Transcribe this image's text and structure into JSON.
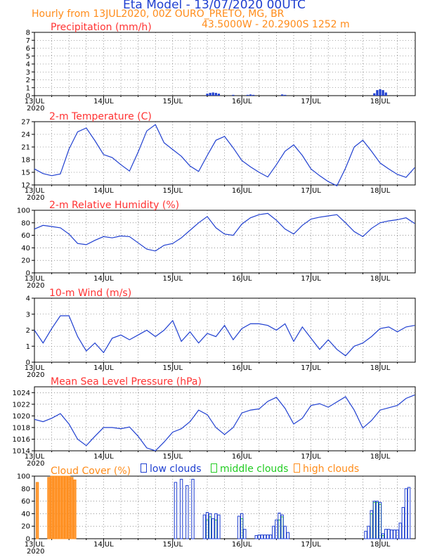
{
  "header": {
    "title": "Eta Model - 13/07/2020 00UTC",
    "subtitle_left": "Hourly from 13JUL2020, 00Z  OURO_PRETO, MG, BR",
    "subtitle_right": "43.5000W - 20.2900S   1252  m"
  },
  "colors": {
    "title": "#1f3fd0",
    "orange": "#ff8c1a",
    "panel_label": "#ff3333",
    "line": "#1f3fd0",
    "axis": "#000000",
    "low": "#1f3fd0",
    "mid": "#22cc22",
    "high": "#ff8c1a",
    "grid": "#555555"
  },
  "x_axis": {
    "start": "2020-07-13T00Z",
    "end": "2020-07-18T12Z",
    "tick_labels": [
      "13JUL",
      "14JUL",
      "15JUL",
      "16JUL",
      "17JUL",
      "18JUL"
    ],
    "year_label": "2020"
  },
  "chart_data": [
    {
      "type": "bar",
      "title": "Precipitation (mm/h)",
      "ylim": [
        0,
        8
      ],
      "yticks": [
        0,
        1,
        2,
        3,
        4,
        5,
        6,
        7,
        8
      ],
      "grid": true,
      "x": [
        "2020-07-15T12Z",
        "2020-07-15T13Z",
        "2020-07-15T14Z",
        "2020-07-15T15Z",
        "2020-07-15T16Z",
        "2020-07-15T21Z",
        "2020-07-16T02Z",
        "2020-07-16T03Z",
        "2020-07-16T04Z",
        "2020-07-16T14Z",
        "2020-07-16T15Z",
        "2020-07-17T22Z",
        "2020-07-17T23Z",
        "2020-07-18T00Z",
        "2020-07-18T01Z",
        "2020-07-18T02Z"
      ],
      "values": [
        0.25,
        0.35,
        0.4,
        0.35,
        0.25,
        0.1,
        0.1,
        0.15,
        0.1,
        0.15,
        0.1,
        0.3,
        0.7,
        0.8,
        0.7,
        0.4
      ]
    },
    {
      "type": "line",
      "title": "2-m Temperature (C)",
      "ylim": [
        12,
        27
      ],
      "yticks": [
        12,
        15,
        18,
        21,
        24,
        27
      ],
      "grid": true,
      "x": [
        "2020-07-13T00Z",
        "2020-07-13T03Z",
        "2020-07-13T06Z",
        "2020-07-13T09Z",
        "2020-07-13T12Z",
        "2020-07-13T15Z",
        "2020-07-13T18Z",
        "2020-07-13T21Z",
        "2020-07-14T00Z",
        "2020-07-14T03Z",
        "2020-07-14T06Z",
        "2020-07-14T09Z",
        "2020-07-14T12Z",
        "2020-07-14T15Z",
        "2020-07-14T18Z",
        "2020-07-14T21Z",
        "2020-07-15T00Z",
        "2020-07-15T03Z",
        "2020-07-15T06Z",
        "2020-07-15T09Z",
        "2020-07-15T12Z",
        "2020-07-15T15Z",
        "2020-07-15T18Z",
        "2020-07-15T21Z",
        "2020-07-16T00Z",
        "2020-07-16T03Z",
        "2020-07-16T06Z",
        "2020-07-16T09Z",
        "2020-07-16T12Z",
        "2020-07-16T15Z",
        "2020-07-16T18Z",
        "2020-07-16T21Z",
        "2020-07-17T00Z",
        "2020-07-17T03Z",
        "2020-07-17T06Z",
        "2020-07-17T09Z",
        "2020-07-17T12Z",
        "2020-07-17T15Z",
        "2020-07-17T18Z",
        "2020-07-17T21Z",
        "2020-07-18T00Z",
        "2020-07-18T03Z",
        "2020-07-18T06Z",
        "2020-07-18T09Z",
        "2020-07-18T12Z"
      ],
      "values": [
        15.8,
        14.7,
        14.2,
        14.6,
        20.5,
        24.6,
        25.5,
        22.5,
        19.2,
        18.5,
        16.8,
        15.3,
        19.8,
        24.8,
        26.3,
        22.0,
        20.4,
        18.8,
        16.5,
        15.2,
        19.0,
        22.6,
        23.5,
        20.8,
        17.8,
        16.3,
        15.0,
        13.9,
        16.8,
        20.0,
        21.5,
        19.0,
        15.8,
        14.2,
        12.8,
        11.8,
        16.0,
        21.0,
        22.6,
        20.0,
        17.2,
        15.8,
        14.5,
        13.8,
        16.1
      ]
    },
    {
      "type": "line",
      "title": "2-m Relative Humidity (%)",
      "ylim": [
        0,
        100
      ],
      "yticks": [
        0,
        20,
        40,
        60,
        80,
        100
      ],
      "grid": true,
      "x": [
        "2020-07-13T00Z",
        "2020-07-13T03Z",
        "2020-07-13T06Z",
        "2020-07-13T09Z",
        "2020-07-13T12Z",
        "2020-07-13T15Z",
        "2020-07-13T18Z",
        "2020-07-13T21Z",
        "2020-07-14T00Z",
        "2020-07-14T03Z",
        "2020-07-14T06Z",
        "2020-07-14T09Z",
        "2020-07-14T12Z",
        "2020-07-14T15Z",
        "2020-07-14T18Z",
        "2020-07-14T21Z",
        "2020-07-15T00Z",
        "2020-07-15T03Z",
        "2020-07-15T06Z",
        "2020-07-15T09Z",
        "2020-07-15T12Z",
        "2020-07-15T15Z",
        "2020-07-15T18Z",
        "2020-07-15T21Z",
        "2020-07-16T00Z",
        "2020-07-16T03Z",
        "2020-07-16T06Z",
        "2020-07-16T09Z",
        "2020-07-16T12Z",
        "2020-07-16T15Z",
        "2020-07-16T18Z",
        "2020-07-16T21Z",
        "2020-07-17T00Z",
        "2020-07-17T03Z",
        "2020-07-17T06Z",
        "2020-07-17T09Z",
        "2020-07-17T12Z",
        "2020-07-17T15Z",
        "2020-07-17T18Z",
        "2020-07-17T21Z",
        "2020-07-18T00Z",
        "2020-07-18T03Z",
        "2020-07-18T06Z",
        "2020-07-18T09Z",
        "2020-07-18T12Z"
      ],
      "values": [
        70,
        76,
        74,
        72,
        62,
        47,
        45,
        52,
        58,
        56,
        59,
        58,
        48,
        38,
        35,
        44,
        47,
        56,
        68,
        80,
        90,
        72,
        62,
        60,
        78,
        88,
        93,
        95,
        84,
        70,
        62,
        76,
        86,
        89,
        91,
        93,
        80,
        66,
        58,
        71,
        80,
        83,
        85,
        88,
        79
      ]
    },
    {
      "type": "line",
      "title": "10-m Wind (m/s)",
      "ylim": [
        0,
        4
      ],
      "yticks": [
        0,
        1,
        2,
        3,
        4
      ],
      "grid": true,
      "x": [
        "2020-07-13T00Z",
        "2020-07-13T03Z",
        "2020-07-13T06Z",
        "2020-07-13T09Z",
        "2020-07-13T12Z",
        "2020-07-13T15Z",
        "2020-07-13T18Z",
        "2020-07-13T21Z",
        "2020-07-14T00Z",
        "2020-07-14T03Z",
        "2020-07-14T06Z",
        "2020-07-14T09Z",
        "2020-07-14T12Z",
        "2020-07-14T15Z",
        "2020-07-14T18Z",
        "2020-07-14T21Z",
        "2020-07-15T00Z",
        "2020-07-15T03Z",
        "2020-07-15T06Z",
        "2020-07-15T09Z",
        "2020-07-15T12Z",
        "2020-07-15T15Z",
        "2020-07-15T18Z",
        "2020-07-15T21Z",
        "2020-07-16T00Z",
        "2020-07-16T03Z",
        "2020-07-16T06Z",
        "2020-07-16T09Z",
        "2020-07-16T12Z",
        "2020-07-16T15Z",
        "2020-07-16T18Z",
        "2020-07-16T21Z",
        "2020-07-17T00Z",
        "2020-07-17T03Z",
        "2020-07-17T06Z",
        "2020-07-17T09Z",
        "2020-07-17T12Z",
        "2020-07-17T15Z",
        "2020-07-17T18Z",
        "2020-07-17T21Z",
        "2020-07-18T00Z",
        "2020-07-18T03Z",
        "2020-07-18T06Z",
        "2020-07-18T09Z",
        "2020-07-18T12Z"
      ],
      "values": [
        2.0,
        1.2,
        2.1,
        2.9,
        2.9,
        1.6,
        0.7,
        1.2,
        0.6,
        1.5,
        1.7,
        1.4,
        1.7,
        2.0,
        1.6,
        2.0,
        2.6,
        1.3,
        1.9,
        1.2,
        1.8,
        1.6,
        2.3,
        1.4,
        2.1,
        2.4,
        2.4,
        2.3,
        2.0,
        2.4,
        1.3,
        2.2,
        1.5,
        0.8,
        1.4,
        0.8,
        0.4,
        1.0,
        1.2,
        1.6,
        2.1,
        2.2,
        1.9,
        2.2,
        2.3
      ]
    },
    {
      "type": "line",
      "title": "Mean Sea Level Pressure (hPa)",
      "ylim": [
        1014,
        1025
      ],
      "yticks": [
        1014,
        1016,
        1018,
        1020,
        1022,
        1024
      ],
      "grid": true,
      "x": [
        "2020-07-13T00Z",
        "2020-07-13T03Z",
        "2020-07-13T06Z",
        "2020-07-13T09Z",
        "2020-07-13T12Z",
        "2020-07-13T15Z",
        "2020-07-13T18Z",
        "2020-07-13T21Z",
        "2020-07-14T00Z",
        "2020-07-14T03Z",
        "2020-07-14T06Z",
        "2020-07-14T09Z",
        "2020-07-14T12Z",
        "2020-07-14T15Z",
        "2020-07-14T18Z",
        "2020-07-14T21Z",
        "2020-07-15T00Z",
        "2020-07-15T03Z",
        "2020-07-15T06Z",
        "2020-07-15T09Z",
        "2020-07-15T12Z",
        "2020-07-15T15Z",
        "2020-07-15T18Z",
        "2020-07-15T21Z",
        "2020-07-16T00Z",
        "2020-07-16T03Z",
        "2020-07-16T06Z",
        "2020-07-16T09Z",
        "2020-07-16T12Z",
        "2020-07-16T15Z",
        "2020-07-16T18Z",
        "2020-07-16T21Z",
        "2020-07-17T00Z",
        "2020-07-17T03Z",
        "2020-07-17T06Z",
        "2020-07-17T09Z",
        "2020-07-17T12Z",
        "2020-07-17T15Z",
        "2020-07-17T18Z",
        "2020-07-17T21Z",
        "2020-07-18T00Z",
        "2020-07-18T03Z",
        "2020-07-18T06Z",
        "2020-07-18T09Z",
        "2020-07-18T12Z"
      ],
      "values": [
        1019.4,
        1019.0,
        1019.6,
        1020.4,
        1018.6,
        1016.0,
        1014.9,
        1016.5,
        1018.0,
        1018.0,
        1017.8,
        1018.1,
        1016.5,
        1014.5,
        1014.0,
        1015.5,
        1017.2,
        1017.8,
        1019.0,
        1021.0,
        1020.2,
        1018.0,
        1016.8,
        1018.0,
        1020.5,
        1021.0,
        1021.2,
        1022.5,
        1023.2,
        1021.3,
        1018.6,
        1019.6,
        1021.8,
        1022.1,
        1021.5,
        1022.4,
        1023.3,
        1021.0,
        1017.9,
        1019.2,
        1021.0,
        1021.4,
        1021.8,
        1023.0,
        1023.6
      ]
    },
    {
      "type": "bar",
      "title": "Cloud Cover (%)",
      "ylim": [
        0,
        100
      ],
      "yticks": [
        0,
        20,
        40,
        60,
        80,
        100
      ],
      "grid": true,
      "legend": [
        "low clouds",
        "middle clouds",
        "high clouds"
      ],
      "series": [
        {
          "name": "low clouds",
          "x": [
            "2020-07-15T01Z",
            "2020-07-15T03Z",
            "2020-07-15T05Z",
            "2020-07-15T07Z",
            "2020-07-15T11Z",
            "2020-07-15T12Z",
            "2020-07-15T13Z",
            "2020-07-15T14Z",
            "2020-07-15T15Z",
            "2020-07-15T16Z",
            "2020-07-15T23Z",
            "2020-07-16T00Z",
            "2020-07-16T01Z",
            "2020-07-16T05Z",
            "2020-07-16T06Z",
            "2020-07-16T07Z",
            "2020-07-16T08Z",
            "2020-07-16T09Z",
            "2020-07-16T10Z",
            "2020-07-16T11Z",
            "2020-07-16T12Z",
            "2020-07-16T13Z",
            "2020-07-16T14Z",
            "2020-07-16T15Z",
            "2020-07-16T16Z",
            "2020-07-17T19Z",
            "2020-07-17T20Z",
            "2020-07-17T21Z",
            "2020-07-17T22Z",
            "2020-07-17T23Z",
            "2020-07-18T00Z",
            "2020-07-18T01Z",
            "2020-07-18T02Z",
            "2020-07-18T03Z",
            "2020-07-18T04Z",
            "2020-07-18T05Z",
            "2020-07-18T06Z",
            "2020-07-18T07Z",
            "2020-07-18T08Z",
            "2020-07-18T09Z",
            "2020-07-18T10Z"
          ],
          "values": [
            90,
            95,
            85,
            95,
            38,
            42,
            40,
            32,
            40,
            38,
            36,
            40,
            15,
            5,
            6,
            6,
            6,
            6,
            6,
            20,
            30,
            41,
            38,
            20,
            10,
            12,
            20,
            45,
            60,
            60,
            58,
            8,
            15,
            15,
            14,
            14,
            14,
            25,
            50,
            80,
            82
          ]
        },
        {
          "name": "middle clouds",
          "x": [
            "2020-07-15T12Z",
            "2020-07-15T13Z",
            "2020-07-15T15Z",
            "2020-07-16T00Z",
            "2020-07-16T13Z",
            "2020-07-16T14Z",
            "2020-07-17T21Z",
            "2020-07-17T22Z",
            "2020-07-17T23Z",
            "2020-07-18T00Z",
            "2020-07-18T01Z"
          ],
          "values": [
            30,
            35,
            30,
            32,
            30,
            35,
            40,
            58,
            58,
            55,
            5
          ]
        },
        {
          "name": "high clouds",
          "x": [
            "2020-07-13T01Z",
            "2020-07-13T05Z",
            "2020-07-13T06Z",
            "2020-07-13T07Z",
            "2020-07-13T08Z",
            "2020-07-13T09Z",
            "2020-07-13T10Z",
            "2020-07-13T11Z",
            "2020-07-13T12Z",
            "2020-07-13T13Z",
            "2020-07-13T14Z"
          ],
          "values": [
            90,
            98,
            100,
            100,
            100,
            100,
            100,
            100,
            100,
            98,
            94
          ]
        }
      ]
    }
  ]
}
